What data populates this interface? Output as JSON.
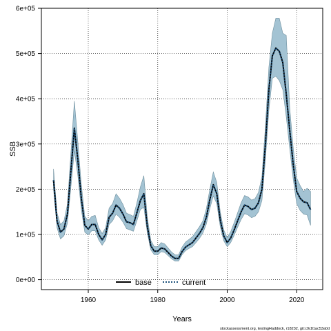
{
  "chart_data": {
    "type": "line",
    "xlabel": "Years",
    "ylabel": "SSB",
    "xlim": [
      1946.5,
      2027.5
    ],
    "ylim": [
      -22000,
      600000
    ],
    "x_ticks": [
      1960,
      1980,
      2000,
      2020
    ],
    "x_tick_labels": [
      "1960",
      "1980",
      "2000",
      "2020"
    ],
    "y_ticks": [
      0,
      100000,
      200000,
      300000,
      400000,
      500000,
      600000
    ],
    "y_tick_labels": [
      "0e+00",
      "1e+05",
      "2e+05",
      "3e+05",
      "4e+05",
      "5e+05",
      "6e+05"
    ],
    "grid": true,
    "legend_position": "bottom",
    "x": [
      1950,
      1951,
      1952,
      1953,
      1954,
      1955,
      1956,
      1957,
      1958,
      1959,
      1960,
      1961,
      1962,
      1963,
      1964,
      1965,
      1966,
      1967,
      1968,
      1969,
      1970,
      1971,
      1972,
      1973,
      1974,
      1975,
      1976,
      1977,
      1978,
      1979,
      1980,
      1981,
      1982,
      1983,
      1984,
      1985,
      1986,
      1987,
      1988,
      1989,
      1990,
      1991,
      1992,
      1993,
      1994,
      1995,
      1996,
      1997,
      1998,
      1999,
      2000,
      2001,
      2002,
      2003,
      2004,
      2005,
      2006,
      2007,
      2008,
      2009,
      2010,
      2011,
      2012,
      2013,
      2014,
      2015,
      2016,
      2017,
      2018,
      2019,
      2020,
      2021,
      2022,
      2023,
      2024
    ],
    "series": [
      {
        "name": "base",
        "color": "#000000",
        "style": "solid",
        "values": [
          220000,
          130000,
          105000,
          112000,
          145000,
          240000,
          335000,
          265000,
          180000,
          120000,
          112000,
          122000,
          122000,
          100000,
          88000,
          100000,
          138000,
          147000,
          165000,
          158000,
          145000,
          128000,
          126000,
          122000,
          148000,
          175000,
          190000,
          118000,
          75000,
          63000,
          63000,
          70000,
          68000,
          60000,
          52000,
          47000,
          47000,
          62000,
          72000,
          77000,
          82000,
          92000,
          102000,
          115000,
          138000,
          177000,
          210000,
          190000,
          132000,
          97000,
          82000,
          92000,
          110000,
          130000,
          150000,
          165000,
          162000,
          155000,
          158000,
          170000,
          200000,
          300000,
          420000,
          495000,
          512000,
          505000,
          480000,
          410000,
          330000,
          255000,
          195000,
          180000,
          172000,
          170000,
          155000
        ]
      },
      {
        "name": "current",
        "color": "#1a4f7a",
        "style": "dotted",
        "values": [
          220000,
          130000,
          105000,
          112000,
          145000,
          240000,
          335000,
          265000,
          180000,
          120000,
          112000,
          122000,
          122000,
          100000,
          88000,
          100000,
          138000,
          147000,
          165000,
          158000,
          145000,
          128000,
          126000,
          122000,
          148000,
          175000,
          190000,
          118000,
          75000,
          63000,
          63000,
          70000,
          68000,
          60000,
          52000,
          47000,
          47000,
          62000,
          72000,
          77000,
          82000,
          92000,
          102000,
          115000,
          138000,
          177000,
          210000,
          190000,
          132000,
          97000,
          82000,
          92000,
          110000,
          130000,
          150000,
          165000,
          162000,
          155000,
          158000,
          170000,
          200000,
          300000,
          420000,
          495000,
          512000,
          505000,
          480000,
          410000,
          330000,
          255000,
          195000,
          180000,
          172000,
          170000,
          155000
        ]
      }
    ],
    "band": {
      "color": "#a3c3d3",
      "stroke": "#6e8f9e",
      "lower": [
        200000,
        115000,
        90000,
        97000,
        125000,
        205000,
        285000,
        230000,
        155000,
        105000,
        99000,
        108000,
        108000,
        88000,
        76000,
        88000,
        122000,
        130000,
        145000,
        138000,
        127000,
        113000,
        110000,
        107000,
        130000,
        155000,
        160000,
        103000,
        66000,
        55000,
        55000,
        62000,
        60000,
        53000,
        46000,
        41000,
        41000,
        55000,
        64000,
        69000,
        73000,
        82000,
        91000,
        103000,
        123000,
        157000,
        185000,
        168000,
        117000,
        86000,
        73000,
        82000,
        98000,
        116000,
        133000,
        146000,
        143000,
        137000,
        140000,
        150000,
        175000,
        265000,
        375000,
        445000,
        450000,
        440000,
        420000,
        360000,
        290000,
        222000,
        168000,
        153000,
        145000,
        143000,
        120000
      ],
      "upper": [
        245000,
        148000,
        122000,
        130000,
        167000,
        280000,
        395000,
        305000,
        210000,
        140000,
        130000,
        140000,
        142000,
        115000,
        102000,
        115000,
        158000,
        168000,
        190000,
        180000,
        166000,
        147000,
        144000,
        140000,
        170000,
        205000,
        230000,
        138000,
        87000,
        73000,
        73000,
        82000,
        79000,
        70000,
        61000,
        55000,
        55000,
        72000,
        83000,
        89000,
        95000,
        106000,
        117000,
        130000,
        157000,
        200000,
        238000,
        215000,
        150000,
        110000,
        93000,
        106000,
        126000,
        148000,
        170000,
        186000,
        183000,
        176000,
        179000,
        193000,
        228000,
        340000,
        470000,
        545000,
        578000,
        578000,
        545000,
        540000,
        380000,
        292000,
        225000,
        208000,
        195000,
        202000,
        195000
      ]
    }
  },
  "legend": {
    "base_label": "base",
    "current_label": "current"
  },
  "footnote": "stockassessment.org, testingHaddock, r18232, git:c9c81ac53a0d"
}
